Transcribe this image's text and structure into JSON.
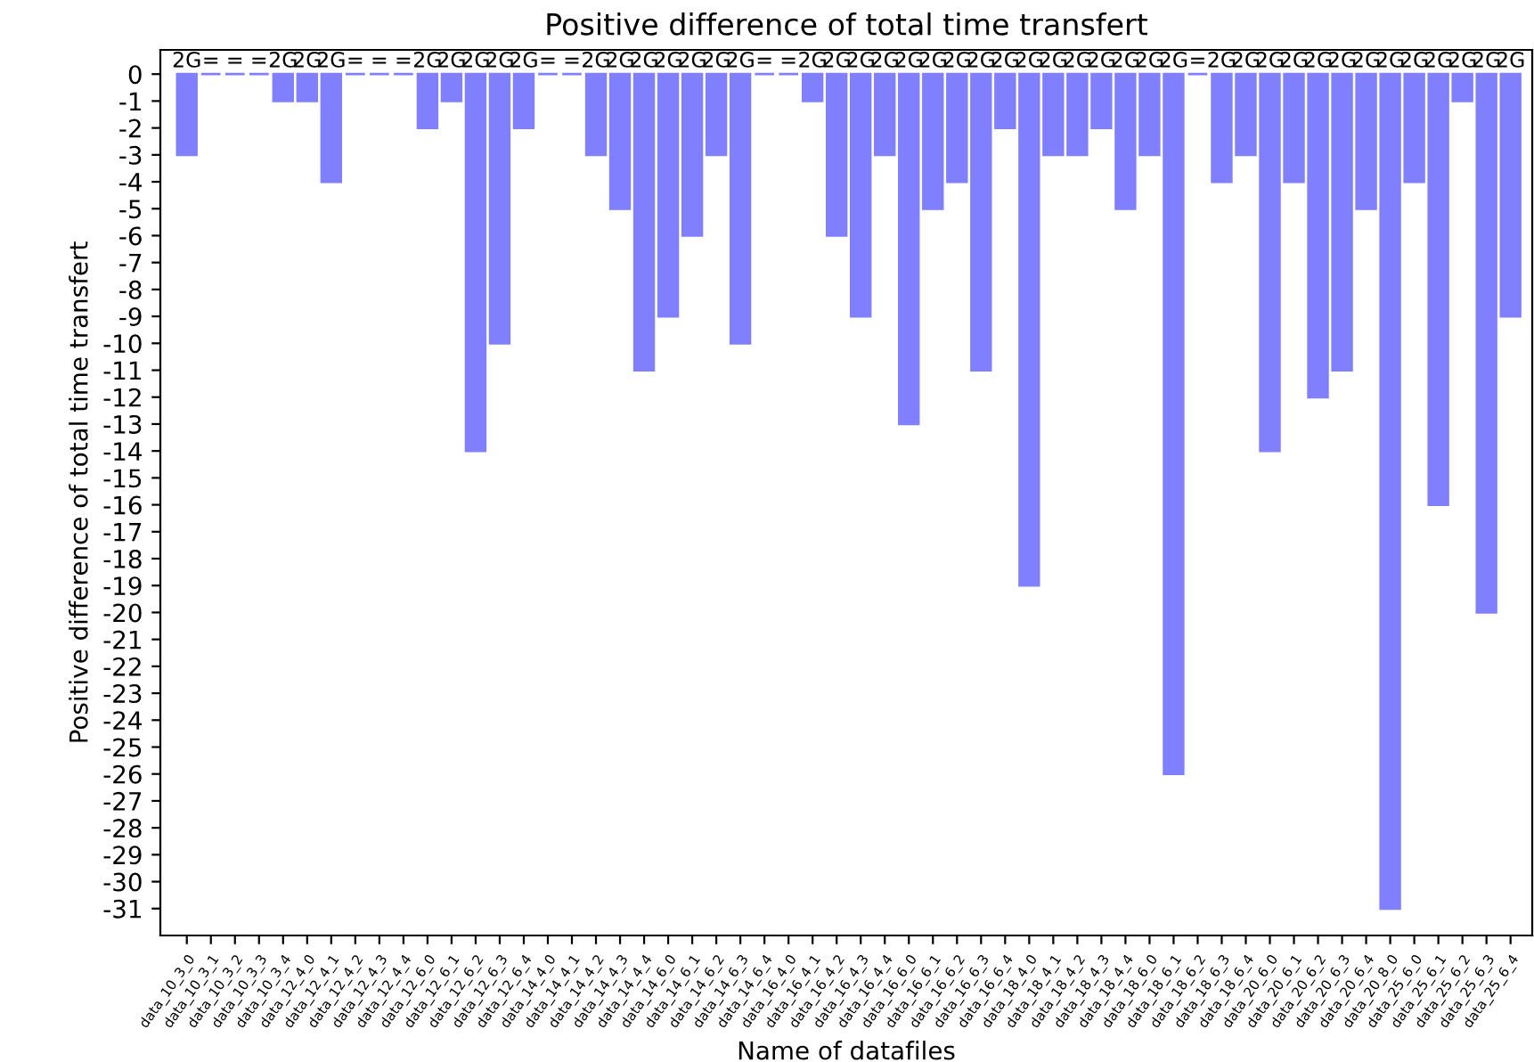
{
  "chart_data": {
    "type": "bar",
    "title": "Positive difference of total time transfert",
    "xlabel": "Name of datafiles",
    "ylabel": "Positive difference of total time transfert",
    "categories": [
      "data_10_3_0",
      "data_10_3_1",
      "data_10_3_2",
      "data_10_3_3",
      "data_10_3_4",
      "data_12_4_0",
      "data_12_4_1",
      "data_12_4_2",
      "data_12_4_3",
      "data_12_4_4",
      "data_12_6_0",
      "data_12_6_1",
      "data_12_6_2",
      "data_12_6_3",
      "data_12_6_4",
      "data_14_4_0",
      "data_14_4_1",
      "data_14_4_2",
      "data_14_4_3",
      "data_14_4_4",
      "data_14_6_0",
      "data_14_6_1",
      "data_14_6_2",
      "data_14_6_3",
      "data_14_6_4",
      "data_16_4_0",
      "data_16_4_1",
      "data_16_4_2",
      "data_16_4_3",
      "data_16_4_4",
      "data_16_6_0",
      "data_16_6_1",
      "data_16_6_2",
      "data_16_6_3",
      "data_16_6_4",
      "data_18_4_0",
      "data_18_4_1",
      "data_18_4_2",
      "data_18_4_3",
      "data_18_4_4",
      "data_18_6_0",
      "data_18_6_1",
      "data_18_6_2",
      "data_18_6_3",
      "data_18_6_4",
      "data_20_6_0",
      "data_20_6_1",
      "data_20_6_2",
      "data_20_6_3",
      "data_20_6_4",
      "data_20_8_0",
      "data_25_6_0",
      "data_25_6_1",
      "data_25_6_2",
      "data_25_6_3",
      "data_25_6_4"
    ],
    "values": [
      -3,
      0,
      0,
      0,
      -1,
      -1,
      -4,
      0,
      0,
      0,
      -2,
      -1,
      -14,
      -10,
      -2,
      0,
      0,
      -3,
      -5,
      -11,
      -9,
      -6,
      -3,
      -10,
      0,
      0,
      -1,
      -6,
      -9,
      -3,
      -13,
      -5,
      -4,
      -11,
      -2,
      -19,
      -3,
      -3,
      -2,
      -5,
      -3,
      -26,
      0,
      -4,
      -3,
      -14,
      -4,
      -12,
      -11,
      -5,
      -31,
      -4,
      -16,
      -1,
      -20,
      -9
    ],
    "annotations": [
      {
        "text": "2G",
        "x": "data_10_3_0",
        "y": 0
      },
      {
        "text": "=",
        "x": "data_10_3_1",
        "y": 0
      },
      {
        "text": "=",
        "x": "data_10_3_2",
        "y": 0
      },
      {
        "text": "=",
        "x": "data_10_3_3",
        "y": 0
      },
      {
        "text": "2G",
        "x": "data_10_3_4",
        "y": 0
      },
      {
        "text": "2G",
        "x": "data_12_4_0",
        "y": 0
      },
      {
        "text": "2G",
        "x": "data_12_4_1",
        "y": 0
      },
      {
        "text": "=",
        "x": "data_12_4_2",
        "y": 0
      },
      {
        "text": "=",
        "x": "data_12_4_3",
        "y": 0
      },
      {
        "text": "=",
        "x": "data_12_4_4",
        "y": 0
      },
      {
        "text": "2G",
        "x": "data_12_6_0",
        "y": 0
      },
      {
        "text": "2G",
        "x": "data_12_6_1",
        "y": 0
      },
      {
        "text": "2G",
        "x": "data_12_6_2",
        "y": 0
      },
      {
        "text": "2G",
        "x": "data_12_6_3",
        "y": 0
      },
      {
        "text": "2G",
        "x": "data_12_6_4",
        "y": 0
      },
      {
        "text": "=",
        "x": "data_14_4_0",
        "y": 0
      },
      {
        "text": "=",
        "x": "data_14_4_1",
        "y": 0
      },
      {
        "text": "2G",
        "x": "data_14_4_2",
        "y": 0
      },
      {
        "text": "2G",
        "x": "data_14_4_3",
        "y": 0
      },
      {
        "text": "2G",
        "x": "data_14_4_4",
        "y": 0
      },
      {
        "text": "2G",
        "x": "data_14_6_0",
        "y": 0
      },
      {
        "text": "2G",
        "x": "data_14_6_1",
        "y": 0
      },
      {
        "text": "2G",
        "x": "data_14_6_2",
        "y": 0
      },
      {
        "text": "2G",
        "x": "data_14_6_3",
        "y": 0
      },
      {
        "text": "=",
        "x": "data_14_6_4",
        "y": 0
      },
      {
        "text": "=",
        "x": "data_16_4_0",
        "y": 0
      },
      {
        "text": "2G",
        "x": "data_16_4_1",
        "y": 0
      },
      {
        "text": "2G",
        "x": "data_16_4_2",
        "y": 0
      },
      {
        "text": "2G",
        "x": "data_16_4_3",
        "y": 0
      },
      {
        "text": "2G",
        "x": "data_16_4_4",
        "y": 0
      },
      {
        "text": "2G",
        "x": "data_16_6_0",
        "y": 0
      },
      {
        "text": "2G",
        "x": "data_16_6_1",
        "y": 0
      },
      {
        "text": "2G",
        "x": "data_16_6_2",
        "y": 0
      },
      {
        "text": "2G",
        "x": "data_16_6_3",
        "y": 0
      },
      {
        "text": "2G",
        "x": "data_16_6_4",
        "y": 0
      },
      {
        "text": "2G",
        "x": "data_18_4_0",
        "y": 0
      },
      {
        "text": "2G",
        "x": "data_18_4_1",
        "y": 0
      },
      {
        "text": "2G",
        "x": "data_18_4_2",
        "y": 0
      },
      {
        "text": "2G",
        "x": "data_18_4_3",
        "y": 0
      },
      {
        "text": "2G",
        "x": "data_18_4_4",
        "y": 0
      },
      {
        "text": "2G",
        "x": "data_18_6_0",
        "y": 0
      },
      {
        "text": "2G",
        "x": "data_18_6_1",
        "y": 0
      },
      {
        "text": "=",
        "x": "data_18_6_2",
        "y": 0
      },
      {
        "text": "2G",
        "x": "data_18_6_3",
        "y": 0
      },
      {
        "text": "2G",
        "x": "data_18_6_4",
        "y": 0
      },
      {
        "text": "2G",
        "x": "data_20_6_0",
        "y": 0
      },
      {
        "text": "2G",
        "x": "data_20_6_1",
        "y": 0
      },
      {
        "text": "2G",
        "x": "data_20_6_2",
        "y": 0
      },
      {
        "text": "2G",
        "x": "data_20_6_3",
        "y": 0
      },
      {
        "text": "2G",
        "x": "data_20_6_4",
        "y": 0
      },
      {
        "text": "2G",
        "x": "data_20_8_0",
        "y": 0
      },
      {
        "text": "2G",
        "x": "data_25_6_0",
        "y": 0
      },
      {
        "text": "2G",
        "x": "data_25_6_1",
        "y": 0
      },
      {
        "text": "2G",
        "x": "data_25_6_2",
        "y": 0
      },
      {
        "text": "2G",
        "x": "data_25_6_3",
        "y": 0
      },
      {
        "text": "2G",
        "x": "data_25_6_4",
        "y": 0
      }
    ],
    "color": "#8080ff",
    "ylim": [
      -32,
      0.9
    ],
    "yticks": [
      0,
      -1,
      -2,
      -3,
      -4,
      -5,
      -6,
      -7,
      -8,
      -9,
      -10,
      -11,
      -12,
      -13,
      -14,
      -15,
      -16,
      -17,
      -18,
      -19,
      -20,
      -21,
      -22,
      -23,
      -24,
      -25,
      -26,
      -27,
      -28,
      -29,
      -30,
      -31
    ],
    "grid": false,
    "legend": false
  }
}
